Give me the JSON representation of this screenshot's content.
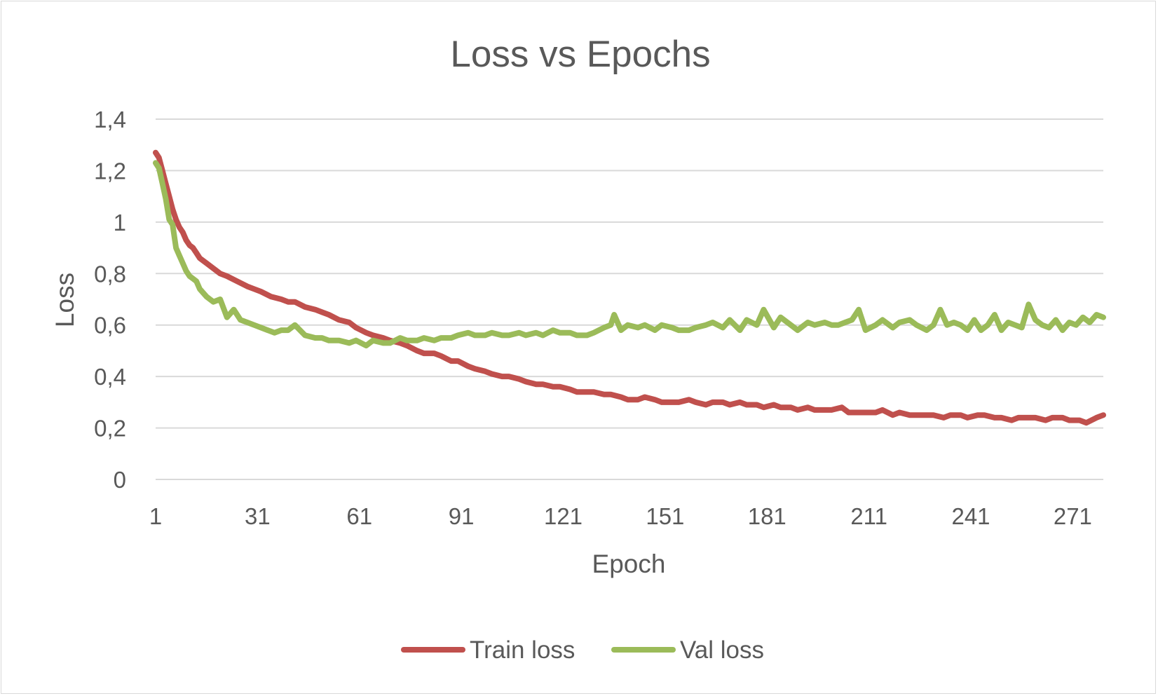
{
  "chart_data": {
    "type": "line",
    "title": "Loss vs Epochs",
    "xlabel": "Epoch",
    "ylabel": "Loss",
    "ylim": [
      0,
      1.4
    ],
    "yticks": [
      "0",
      "0,2",
      "0,4",
      "0,6",
      "0,8",
      "1",
      "1,2",
      "1,4"
    ],
    "xticks": [
      "1",
      "31",
      "61",
      "91",
      "121",
      "151",
      "181",
      "211",
      "241",
      "271"
    ],
    "xrange": [
      1,
      280
    ],
    "grid": true,
    "legend_position": "bottom",
    "series": [
      {
        "name": "Train loss",
        "color": "#c0504d",
        "x": [
          1,
          2,
          3,
          4,
          5,
          6,
          7,
          8,
          9,
          10,
          11,
          12,
          13,
          14,
          15,
          16,
          18,
          20,
          22,
          25,
          28,
          30,
          32,
          35,
          38,
          40,
          42,
          45,
          48,
          50,
          52,
          55,
          58,
          60,
          63,
          65,
          68,
          70,
          73,
          75,
          78,
          80,
          83,
          85,
          88,
          90,
          93,
          95,
          98,
          100,
          103,
          105,
          108,
          110,
          113,
          115,
          118,
          120,
          123,
          125,
          128,
          130,
          133,
          135,
          138,
          140,
          143,
          145,
          148,
          150,
          152,
          155,
          158,
          160,
          163,
          165,
          168,
          170,
          173,
          175,
          178,
          180,
          183,
          185,
          188,
          190,
          193,
          195,
          198,
          200,
          203,
          205,
          208,
          210,
          213,
          215,
          218,
          220,
          223,
          225,
          228,
          230,
          233,
          235,
          238,
          240,
          243,
          245,
          248,
          250,
          253,
          255,
          258,
          260,
          263,
          265,
          268,
          270,
          273,
          275,
          278,
          280
        ],
        "values": [
          1.27,
          1.25,
          1.2,
          1.15,
          1.1,
          1.05,
          1.01,
          0.98,
          0.96,
          0.93,
          0.91,
          0.9,
          0.88,
          0.86,
          0.85,
          0.84,
          0.82,
          0.8,
          0.79,
          0.77,
          0.75,
          0.74,
          0.73,
          0.71,
          0.7,
          0.69,
          0.69,
          0.67,
          0.66,
          0.65,
          0.64,
          0.62,
          0.61,
          0.59,
          0.57,
          0.56,
          0.55,
          0.54,
          0.53,
          0.52,
          0.5,
          0.49,
          0.49,
          0.48,
          0.46,
          0.46,
          0.44,
          0.43,
          0.42,
          0.41,
          0.4,
          0.4,
          0.39,
          0.38,
          0.37,
          0.37,
          0.36,
          0.36,
          0.35,
          0.34,
          0.34,
          0.34,
          0.33,
          0.33,
          0.32,
          0.31,
          0.31,
          0.32,
          0.31,
          0.3,
          0.3,
          0.3,
          0.31,
          0.3,
          0.29,
          0.3,
          0.3,
          0.29,
          0.3,
          0.29,
          0.29,
          0.28,
          0.29,
          0.28,
          0.28,
          0.27,
          0.28,
          0.27,
          0.27,
          0.27,
          0.28,
          0.26,
          0.26,
          0.26,
          0.26,
          0.27,
          0.25,
          0.26,
          0.25,
          0.25,
          0.25,
          0.25,
          0.24,
          0.25,
          0.25,
          0.24,
          0.25,
          0.25,
          0.24,
          0.24,
          0.23,
          0.24,
          0.24,
          0.24,
          0.23,
          0.24,
          0.24,
          0.23,
          0.23,
          0.22,
          0.24,
          0.25
        ]
      },
      {
        "name": "Val loss",
        "color": "#9bbb59",
        "x": [
          1,
          2,
          3,
          4,
          5,
          6,
          7,
          8,
          9,
          10,
          11,
          12,
          13,
          14,
          16,
          18,
          20,
          22,
          24,
          26,
          28,
          30,
          32,
          34,
          36,
          38,
          40,
          42,
          45,
          48,
          50,
          52,
          55,
          58,
          60,
          63,
          65,
          68,
          70,
          73,
          75,
          78,
          80,
          83,
          85,
          88,
          90,
          93,
          95,
          98,
          100,
          103,
          105,
          108,
          110,
          113,
          115,
          118,
          120,
          123,
          125,
          128,
          130,
          133,
          135,
          136,
          138,
          140,
          143,
          145,
          148,
          150,
          153,
          155,
          158,
          160,
          163,
          165,
          168,
          170,
          173,
          175,
          178,
          180,
          183,
          185,
          188,
          190,
          193,
          195,
          198,
          200,
          202,
          204,
          206,
          208,
          210,
          213,
          215,
          218,
          220,
          223,
          225,
          228,
          230,
          232,
          234,
          236,
          238,
          240,
          242,
          244,
          246,
          248,
          250,
          252,
          254,
          256,
          258,
          260,
          262,
          264,
          266,
          268,
          270,
          272,
          274,
          276,
          278,
          280
        ],
        "values": [
          1.23,
          1.21,
          1.15,
          1.09,
          1.01,
          0.99,
          0.9,
          0.87,
          0.84,
          0.81,
          0.79,
          0.78,
          0.77,
          0.74,
          0.71,
          0.69,
          0.7,
          0.63,
          0.66,
          0.62,
          0.61,
          0.6,
          0.59,
          0.58,
          0.57,
          0.58,
          0.58,
          0.6,
          0.56,
          0.55,
          0.55,
          0.54,
          0.54,
          0.53,
          0.54,
          0.52,
          0.54,
          0.53,
          0.53,
          0.55,
          0.54,
          0.54,
          0.55,
          0.54,
          0.55,
          0.55,
          0.56,
          0.57,
          0.56,
          0.56,
          0.57,
          0.56,
          0.56,
          0.57,
          0.56,
          0.57,
          0.56,
          0.58,
          0.57,
          0.57,
          0.56,
          0.56,
          0.57,
          0.59,
          0.6,
          0.64,
          0.58,
          0.6,
          0.59,
          0.6,
          0.58,
          0.6,
          0.59,
          0.58,
          0.58,
          0.59,
          0.6,
          0.61,
          0.59,
          0.62,
          0.58,
          0.62,
          0.6,
          0.66,
          0.59,
          0.63,
          0.6,
          0.58,
          0.61,
          0.6,
          0.61,
          0.6,
          0.6,
          0.61,
          0.62,
          0.66,
          0.58,
          0.6,
          0.62,
          0.59,
          0.61,
          0.62,
          0.6,
          0.58,
          0.6,
          0.66,
          0.6,
          0.61,
          0.6,
          0.58,
          0.62,
          0.58,
          0.6,
          0.64,
          0.58,
          0.61,
          0.6,
          0.59,
          0.68,
          0.62,
          0.6,
          0.59,
          0.62,
          0.58,
          0.61,
          0.6,
          0.63,
          0.61,
          0.64,
          0.63
        ]
      }
    ]
  }
}
